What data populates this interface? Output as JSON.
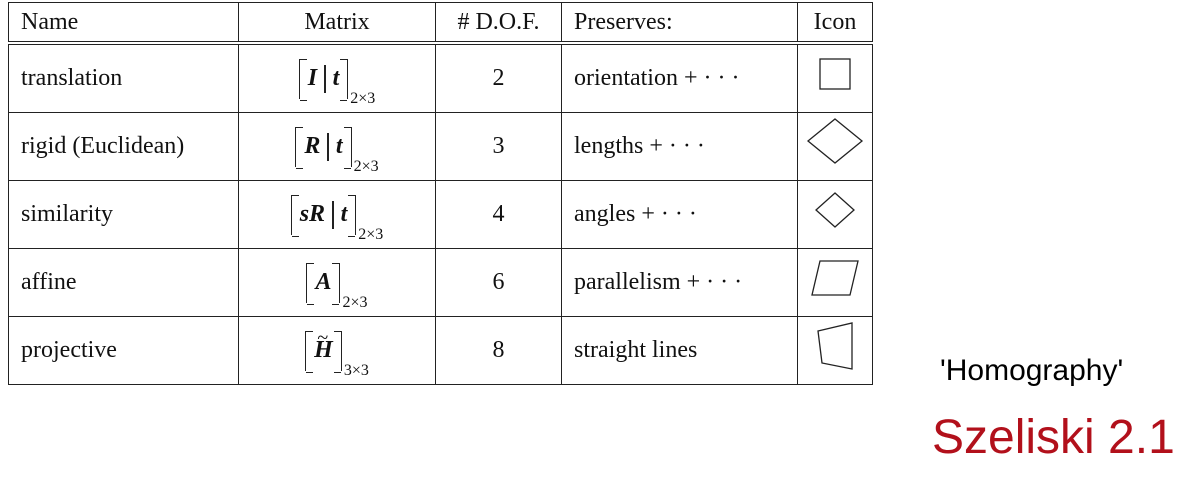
{
  "table": {
    "headers": {
      "name": "Name",
      "matrix": "Matrix",
      "dof": "# D.O.F.",
      "preserves": "Preserves:",
      "icon": "Icon"
    },
    "rows": [
      {
        "name": "translation",
        "matrix_parts": [
          "I",
          "t"
        ],
        "matrix_sub": "2×3",
        "dof": "2",
        "preserves": "orientation + · · ·",
        "icon": "square-icon"
      },
      {
        "name": "rigid (Euclidean)",
        "matrix_parts": [
          "R",
          "t"
        ],
        "matrix_sub": "2×3",
        "dof": "3",
        "preserves": "lengths + · · ·",
        "icon": "rotated-square-icon"
      },
      {
        "name": "similarity",
        "matrix_parts": [
          "sR",
          "t"
        ],
        "matrix_sub": "2×3",
        "dof": "4",
        "preserves": "angles + · · ·",
        "icon": "small-rotated-square-icon"
      },
      {
        "name": "affine",
        "matrix_parts": [
          "A"
        ],
        "matrix_sub": "2×3",
        "dof": "6",
        "preserves": "parallelism + · · ·",
        "icon": "parallelogram-icon"
      },
      {
        "name": "projective",
        "matrix_parts": [
          "H"
        ],
        "matrix_sub": "3×3",
        "dof": "8",
        "preserves": "straight lines",
        "icon": "trapezoid-icon"
      }
    ]
  },
  "annotation": "'Homography'",
  "credit": "Szeliski 2.1",
  "colors": {
    "credit": "#b2101b"
  }
}
